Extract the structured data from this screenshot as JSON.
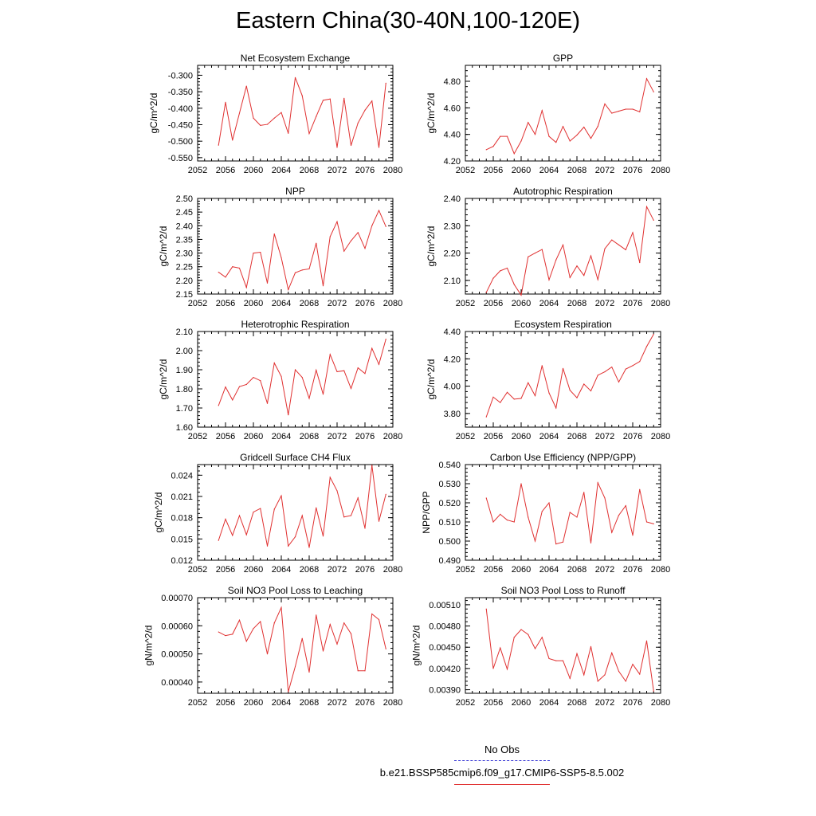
{
  "title": "Eastern China(30-40N,100-120E)",
  "legend": {
    "obs_label": "No Obs",
    "obs_color": "#3b3bd6",
    "model_label": "b.e21.BSSP585cmip6.f09_g17.CMIP6-SSP5-8.5.002",
    "model_color": "#e03030"
  },
  "x_axis": {
    "range": [
      2052,
      2080
    ],
    "ticks": [
      "2052",
      "2056",
      "2060",
      "2064",
      "2068",
      "2072",
      "2076",
      "2080"
    ]
  },
  "chart_data": [
    {
      "type": "line",
      "title": "Net Ecosystem Exchange",
      "ylabel": "gC/m^2/d",
      "ylim": [
        -0.56,
        -0.27
      ],
      "yticks": [
        "-0.550",
        "-0.500",
        "-0.450",
        "-0.400",
        "-0.350",
        "-0.300"
      ],
      "x": [
        2055,
        2056,
        2057,
        2058,
        2059,
        2060,
        2061,
        2062,
        2063,
        2064,
        2065,
        2066,
        2067,
        2068,
        2069,
        2070,
        2071,
        2072,
        2073,
        2074,
        2075,
        2076,
        2077,
        2078,
        2079
      ],
      "series": [
        {
          "values": [
            -0.512,
            -0.382,
            -0.497,
            -0.415,
            -0.333,
            -0.43,
            -0.452,
            -0.449,
            -0.43,
            -0.413,
            -0.476,
            -0.307,
            -0.362,
            -0.477,
            -0.425,
            -0.376,
            -0.372,
            -0.519,
            -0.37,
            -0.513,
            -0.445,
            -0.406,
            -0.378,
            -0.519,
            -0.324
          ]
        }
      ]
    },
    {
      "type": "line",
      "title": "GPP",
      "ylabel": "gC/m^2/d",
      "ylim": [
        4.2,
        4.92
      ],
      "yticks": [
        "4.20",
        "4.40",
        "4.60",
        "4.80"
      ],
      "x": [
        2055,
        2056,
        2057,
        2058,
        2059,
        2060,
        2061,
        2062,
        2063,
        2064,
        2065,
        2066,
        2067,
        2068,
        2069,
        2070,
        2071,
        2072,
        2073,
        2074,
        2075,
        2076,
        2077,
        2078,
        2079
      ],
      "series": [
        {
          "values": [
            4.285,
            4.31,
            4.385,
            4.385,
            4.255,
            4.35,
            4.49,
            4.4,
            4.58,
            4.385,
            4.34,
            4.46,
            4.35,
            4.395,
            4.455,
            4.37,
            4.46,
            4.63,
            4.56,
            4.575,
            4.59,
            4.59,
            4.57,
            4.82,
            4.72
          ]
        }
      ]
    },
    {
      "type": "line",
      "title": "NPP",
      "ylabel": "gC/m^2/d",
      "ylim": [
        2.15,
        2.5
      ],
      "yticks": [
        "2.15",
        "2.20",
        "2.25",
        "2.30",
        "2.35",
        "2.40",
        "2.45",
        "2.50"
      ],
      "x": [
        2055,
        2056,
        2057,
        2058,
        2059,
        2060,
        2061,
        2062,
        2063,
        2064,
        2065,
        2066,
        2067,
        2068,
        2069,
        2070,
        2071,
        2072,
        2073,
        2074,
        2075,
        2076,
        2077,
        2078,
        2079
      ],
      "series": [
        {
          "values": [
            2.23,
            2.212,
            2.25,
            2.245,
            2.174,
            2.3,
            2.303,
            2.19,
            2.37,
            2.283,
            2.166,
            2.228,
            2.238,
            2.242,
            2.336,
            2.18,
            2.36,
            2.415,
            2.307,
            2.345,
            2.375,
            2.317,
            2.4,
            2.456,
            2.397
          ]
        }
      ]
    },
    {
      "type": "line",
      "title": "Autotrophic Respiration",
      "ylabel": "gC/m^2/d",
      "ylim": [
        2.05,
        2.4
      ],
      "yticks": [
        "2.10",
        "2.20",
        "2.30",
        "2.40"
      ],
      "x": [
        2055,
        2056,
        2057,
        2058,
        2059,
        2060,
        2061,
        2062,
        2063,
        2064,
        2065,
        2066,
        2067,
        2068,
        2069,
        2070,
        2071,
        2072,
        2073,
        2074,
        2075,
        2076,
        2077,
        2078,
        2079
      ],
      "series": [
        {
          "values": [
            2.056,
            2.108,
            2.135,
            2.145,
            2.085,
            2.046,
            2.186,
            2.2,
            2.213,
            2.102,
            2.175,
            2.23,
            2.11,
            2.153,
            2.118,
            2.19,
            2.103,
            2.216,
            2.248,
            2.23,
            2.212,
            2.275,
            2.165,
            2.37,
            2.32
          ]
        }
      ]
    },
    {
      "type": "line",
      "title": "Heterotrophic Respiration",
      "ylabel": "gC/m^2/d",
      "ylim": [
        1.6,
        2.1
      ],
      "yticks": [
        "1.60",
        "1.70",
        "1.80",
        "1.90",
        "2.00",
        "2.10"
      ],
      "x": [
        2055,
        2056,
        2057,
        2058,
        2059,
        2060,
        2061,
        2062,
        2063,
        2064,
        2065,
        2066,
        2067,
        2068,
        2069,
        2070,
        2071,
        2072,
        2073,
        2074,
        2075,
        2076,
        2077,
        2078,
        2079
      ],
      "series": [
        {
          "values": [
            1.713,
            1.81,
            1.742,
            1.812,
            1.823,
            1.86,
            1.843,
            1.724,
            1.935,
            1.865,
            1.664,
            1.9,
            1.86,
            1.75,
            1.898,
            1.772,
            1.98,
            1.89,
            1.895,
            1.802,
            1.91,
            1.88,
            2.012,
            1.928,
            2.06
          ]
        }
      ]
    },
    {
      "type": "line",
      "title": "Ecosystem Respiration",
      "ylabel": "gC/m^2/d",
      "ylim": [
        3.7,
        4.4
      ],
      "yticks": [
        "3.80",
        "4.00",
        "4.20",
        "4.40"
      ],
      "x": [
        2055,
        2056,
        2057,
        2058,
        2059,
        2060,
        2061,
        2062,
        2063,
        2064,
        2065,
        2066,
        2067,
        2068,
        2069,
        2070,
        2071,
        2072,
        2073,
        2074,
        2075,
        2076,
        2077,
        2078,
        2079
      ],
      "series": [
        {
          "values": [
            3.775,
            3.92,
            3.88,
            3.955,
            3.905,
            3.91,
            4.025,
            3.93,
            4.15,
            3.95,
            3.84,
            4.13,
            3.97,
            3.915,
            4.015,
            3.965,
            4.08,
            4.105,
            4.14,
            4.03,
            4.125,
            4.15,
            4.18,
            4.29,
            4.38
          ]
        }
      ]
    },
    {
      "type": "line",
      "title": "Gridcell Surface CH4 Flux",
      "ylabel": "gC/m^2/d",
      "ylim": [
        0.012,
        0.0255
      ],
      "yticks": [
        "0.012",
        "0.015",
        "0.018",
        "0.021",
        "0.024"
      ],
      "x": [
        2055,
        2056,
        2057,
        2058,
        2059,
        2060,
        2061,
        2062,
        2063,
        2064,
        2065,
        2066,
        2067,
        2068,
        2069,
        2070,
        2071,
        2072,
        2073,
        2074,
        2075,
        2076,
        2077,
        2078,
        2079
      ],
      "series": [
        {
          "values": [
            0.0148,
            0.0178,
            0.0155,
            0.0183,
            0.0156,
            0.0188,
            0.0193,
            0.014,
            0.0192,
            0.0211,
            0.014,
            0.0153,
            0.0183,
            0.0138,
            0.0194,
            0.0154,
            0.0237,
            0.0218,
            0.0181,
            0.0183,
            0.0208,
            0.0165,
            0.0254,
            0.0175,
            0.0213
          ]
        }
      ]
    },
    {
      "type": "line",
      "title": "Carbon Use Efficiency (NPP/GPP)",
      "ylabel": "NPP/GPP",
      "ylim": [
        0.49,
        0.54
      ],
      "yticks": [
        "0.490",
        "0.500",
        "0.510",
        "0.520",
        "0.530",
        "0.540"
      ],
      "x": [
        2055,
        2056,
        2057,
        2058,
        2059,
        2060,
        2061,
        2062,
        2063,
        2064,
        2065,
        2066,
        2067,
        2068,
        2069,
        2070,
        2071,
        2072,
        2073,
        2074,
        2075,
        2076,
        2077,
        2078,
        2079
      ],
      "series": [
        {
          "values": [
            0.5225,
            0.51,
            0.514,
            0.511,
            0.51,
            0.53,
            0.5125,
            0.5,
            0.5155,
            0.52,
            0.4985,
            0.4995,
            0.515,
            0.5125,
            0.5255,
            0.499,
            0.5305,
            0.5225,
            0.5045,
            0.5135,
            0.5185,
            0.503,
            0.527,
            0.51,
            0.509
          ]
        }
      ]
    },
    {
      "type": "line",
      "title": "Soil NO3 Pool Loss to Leaching",
      "ylabel": "gN/m^2/d",
      "ylim": [
        0.00036,
        0.0007
      ],
      "yticks": [
        "0.00040",
        "0.00050",
        "0.00060",
        "0.00070"
      ],
      "x": [
        2055,
        2056,
        2057,
        2058,
        2059,
        2060,
        2061,
        2062,
        2063,
        2064,
        2065,
        2066,
        2067,
        2068,
        2069,
        2070,
        2071,
        2072,
        2073,
        2074,
        2075,
        2076,
        2077,
        2078,
        2079
      ],
      "series": [
        {
          "values": [
            0.000578,
            0.000565,
            0.00057,
            0.00062,
            0.000545,
            0.00059,
            0.000615,
            0.0005,
            0.00061,
            0.000665,
            0.000365,
            0.000455,
            0.000555,
            0.000435,
            0.000638,
            0.00051,
            0.000605,
            0.000535,
            0.00061,
            0.000572,
            0.00044,
            0.00044,
            0.000642,
            0.000622,
            0.000518
          ]
        }
      ]
    },
    {
      "type": "line",
      "title": "Soil NO3 Pool Loss to Runoff",
      "ylabel": "gN/m^2/d",
      "ylim": [
        0.00385,
        0.0052
      ],
      "yticks": [
        "0.00390",
        "0.00420",
        "0.00450",
        "0.00480",
        "0.00510"
      ],
      "x": [
        2055,
        2056,
        2057,
        2058,
        2059,
        2060,
        2061,
        2062,
        2063,
        2064,
        2065,
        2066,
        2067,
        2068,
        2069,
        2070,
        2071,
        2072,
        2073,
        2074,
        2075,
        2076,
        2077,
        2078,
        2079
      ],
      "series": [
        {
          "values": [
            0.00504,
            0.0042,
            0.00449,
            0.00419,
            0.00464,
            0.00475,
            0.00468,
            0.00448,
            0.00464,
            0.00434,
            0.00431,
            0.00431,
            0.00406,
            0.00441,
            0.00411,
            0.00451,
            0.00402,
            0.00411,
            0.00442,
            0.00416,
            0.00402,
            0.00426,
            0.00412,
            0.00459,
            0.00388
          ]
        }
      ]
    }
  ]
}
